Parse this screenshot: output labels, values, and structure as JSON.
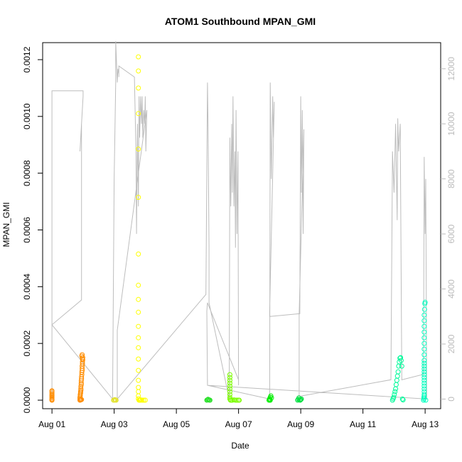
{
  "chart_data": {
    "type": "scatter",
    "title": "ATOM1 Southbound MPAN_GMI",
    "xlabel": "Date",
    "ylabel": "MPAN_GMI",
    "x_ticks": [
      "Aug 01",
      "Aug 03",
      "Aug 05",
      "Aug 07",
      "Aug 09",
      "Aug 11",
      "Aug 13"
    ],
    "xlim": [
      -0.3,
      12.5
    ],
    "y_ticks": [
      "0.0000",
      "0.0002",
      "0.0004",
      "0.0006",
      "0.0008",
      "0.0010",
      "0.0012"
    ],
    "ylim": [
      -3e-05,
      0.00126
    ],
    "y2_ticks": [
      "0",
      "2000",
      "4000",
      "6000",
      "8000",
      "10000",
      "12000"
    ],
    "y2lim": [
      -350,
      12950
    ],
    "grid": false,
    "colors": {
      "axis": "#000000",
      "right_axis": "#bbbbbb",
      "altitude_line": "#bdbdbd"
    },
    "series": [
      {
        "color": "#FF8C00",
        "x": [
          0.0,
          0.0,
          0.0,
          0.0,
          0.0,
          0.0,
          0.0,
          0.0,
          0.0,
          0.0
        ],
        "y": [
          0.0,
          4e-06,
          8e-06,
          1.2e-05,
          1.6e-05,
          2e-05,
          2.5e-05,
          3e-05,
          3.3e-05,
          1e-06
        ]
      },
      {
        "color": "#FF8C00",
        "x": [
          0.9,
          0.9,
          0.9,
          0.91,
          0.91,
          0.92,
          0.92,
          0.93,
          0.93,
          0.93,
          0.94,
          0.94,
          0.94,
          0.95,
          0.95,
          0.96,
          0.96,
          0.97,
          0.97,
          0.97,
          0.98,
          0.98,
          0.99,
          0.99,
          0.96,
          0.97,
          0.98,
          0.92,
          0.95,
          0.93
        ],
        "y": [
          0.0,
          5e-06,
          1e-05,
          1.5e-05,
          2e-05,
          2.5e-05,
          3e-05,
          3.5e-05,
          4e-05,
          4.8e-05,
          5.5e-05,
          6e-05,
          6.8e-05,
          7.5e-05,
          8.2e-05,
          9e-05,
          9.8e-05,
          0.000105,
          0.000112,
          0.00012,
          0.000128,
          0.000135,
          0.000142,
          0.00015,
          0.000155,
          0.00016,
          0.000145,
          1e-06,
          2e-06,
          3e-06
        ]
      },
      {
        "color": "#E2E22F",
        "x": [
          1.98,
          2.0,
          2.02,
          2.04,
          2.06
        ],
        "y": [
          0.0,
          0.0,
          2e-06,
          1e-06,
          0.0
        ]
      },
      {
        "color": "#FFFF00",
        "x": [
          2.78,
          2.78,
          2.78,
          2.78,
          2.78,
          2.78,
          2.78,
          2.78,
          2.78,
          2.78,
          2.78,
          2.78,
          2.78,
          2.78,
          2.78,
          2.78,
          2.78,
          2.78,
          2.78,
          2.78,
          2.8,
          2.82,
          2.84,
          2.86,
          2.9,
          2.95,
          3.0
        ],
        "y": [
          0.00121,
          0.00116,
          0.0011,
          0.00101,
          0.000885,
          0.000715,
          0.000515,
          0.000405,
          0.000355,
          0.00031,
          0.00026,
          0.00022,
          0.000185,
          0.000145,
          0.000105,
          7e-05,
          4.5e-05,
          3e-05,
          1.5e-05,
          5e-06,
          0.0,
          0.0,
          0.0,
          1e-06,
          0.0,
          0.0,
          0.0
        ]
      },
      {
        "color": "#2BE02B",
        "x": [
          4.98,
          5.0,
          5.02,
          5.04,
          5.06,
          5.08
        ],
        "y": [
          0.0,
          1e-06,
          3e-06,
          2e-06,
          0.0,
          0.0
        ]
      },
      {
        "color": "#7CFC00",
        "x": [
          5.72,
          5.72,
          5.72,
          5.72,
          5.72,
          5.72,
          5.72,
          5.72,
          5.72,
          5.72,
          5.74,
          5.76,
          5.8,
          5.85,
          5.9,
          5.95,
          6.0,
          6.02
        ],
        "y": [
          9e-05,
          8e-05,
          7e-05,
          6e-05,
          5e-05,
          4e-05,
          3e-05,
          2e-05,
          1e-05,
          4e-06,
          0.0,
          0.0,
          0.0,
          1e-06,
          0.0,
          0.0,
          0.0,
          0.0
        ]
      },
      {
        "color": "#00EE00",
        "x": [
          6.98,
          7.0,
          7.02,
          7.04,
          7.06,
          7.0,
          7.02
        ],
        "y": [
          0.0,
          5e-06,
          1e-05,
          1.5e-05,
          8e-06,
          2e-06,
          0.0
        ]
      },
      {
        "color": "#00E040",
        "x": [
          7.9,
          7.92,
          7.94,
          7.96,
          7.98,
          8.0,
          8.02
        ],
        "y": [
          0.0,
          3e-06,
          8e-06,
          1e-06,
          0.0,
          2e-06,
          4e-06
        ]
      },
      {
        "color": "#00FA9A",
        "x": [
          10.95,
          10.97,
          10.99,
          11.01,
          11.03,
          11.05,
          11.07,
          11.09,
          11.11,
          11.13,
          11.15,
          11.17,
          11.19,
          11.21,
          11.23,
          11.25,
          11.27,
          11.29
        ],
        "y": [
          0.0,
          5e-06,
          1e-05,
          2e-05,
          3e-05,
          4e-05,
          5.5e-05,
          7e-05,
          8.5e-05,
          0.0001,
          0.00012,
          0.000135,
          0.000148,
          0.00015,
          0.00014,
          0.00012,
          4e-06,
          1e-06
        ]
      },
      {
        "color": "#00FFBF",
        "x": [
          11.95,
          11.96,
          11.96,
          11.97,
          11.97,
          11.97,
          11.97,
          11.97,
          11.97,
          11.97,
          11.97,
          11.97,
          11.97,
          11.97,
          11.97,
          11.97,
          11.97,
          11.97,
          11.97,
          11.97,
          11.97,
          11.97,
          11.97,
          11.97,
          11.97,
          11.98,
          11.99,
          12.0,
          12.02
        ],
        "y": [
          0.0,
          5e-06,
          1e-05,
          1.5e-05,
          2e-05,
          3e-05,
          4e-05,
          5e-05,
          6e-05,
          7e-05,
          8e-05,
          9e-05,
          0.0001,
          0.00011,
          0.00012,
          0.00013,
          0.00014,
          0.00016,
          0.00018,
          0.0002,
          0.00022,
          0.00024,
          0.00026,
          0.00028,
          0.0003,
          0.00032,
          0.00034,
          0.000345,
          0.0
        ]
      }
    ],
    "altitude_line": {
      "x": [
        0.0,
        0.0,
        0.0,
        1.0,
        1.0,
        0.9,
        0.95,
        0.95,
        0.0,
        1.95,
        2.0,
        2.05,
        2.05,
        2.1,
        2.12,
        2.15,
        2.15,
        2.15,
        2.65,
        2.7,
        2.72,
        2.75,
        2.78,
        2.8,
        2.82,
        2.85,
        2.88,
        2.9,
        2.92,
        2.95,
        2.98,
        3.0,
        3.02,
        3.05,
        2.1,
        2.1,
        4.95,
        5.0,
        5.02,
        5.05,
        5.05,
        5.05,
        5.7,
        5.72,
        5.75,
        5.78,
        5.8,
        5.82,
        5.85,
        5.88,
        5.9,
        5.92,
        5.95,
        5.98,
        6.0,
        6.0,
        5.0,
        4.98,
        5.0,
        7.0,
        7.02,
        7.05,
        7.1,
        7.12,
        7.15,
        7.0,
        7.0,
        7.95,
        7.97,
        8.0,
        8.02,
        8.05,
        8.08,
        8.1,
        7.95,
        7.95,
        10.9,
        10.95,
        11.0,
        11.05,
        11.1,
        11.12,
        11.15,
        11.2,
        11.25,
        11.95,
        11.97,
        12.0,
        12.02,
        12.05,
        5.0,
        5.0
      ],
      "y": [
        0,
        5000,
        11200,
        11200,
        11000,
        9000,
        10000,
        3600,
        2700,
        0,
        8000,
        11500,
        13000,
        11500,
        12000,
        11800,
        11700,
        12100,
        11700,
        9000,
        6000,
        10000,
        7000,
        11000,
        9500,
        11000,
        10000,
        11000,
        9500,
        10500,
        10000,
        11000,
        9000,
        10500,
        2500,
        0,
        3800,
        11500,
        10000,
        5500,
        3500,
        3500,
        0,
        9500,
        7000,
        10000,
        7500,
        11000,
        7000,
        9000,
        5500,
        10500,
        6000,
        9000,
        500,
        700,
        3500,
        3200,
        500,
        0,
        11500,
        8000,
        11000,
        9500,
        10800,
        3200,
        3000,
        3100,
        3100,
        11000,
        7500,
        10500,
        6000,
        9800,
        3100,
        100,
        700,
        9000,
        7500,
        10000,
        6500,
        10200,
        9000,
        10000,
        700,
        900,
        8800,
        6000,
        8000,
        0,
        500,
        700
      ]
    }
  }
}
